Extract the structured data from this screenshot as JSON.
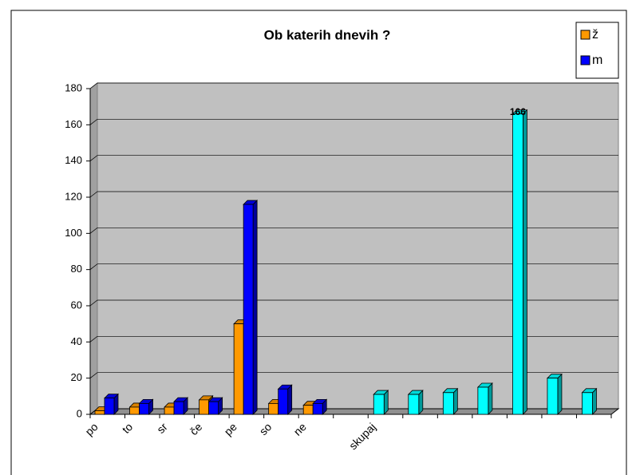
{
  "chart_data": {
    "type": "bar3d",
    "title": "Ob katerih dnevih ?",
    "categories": [
      "po",
      "to",
      "sr",
      "če",
      "pe",
      "so",
      "ne",
      null,
      "skupaj",
      null,
      null,
      null,
      null,
      null,
      null
    ],
    "series": [
      {
        "name": "ž",
        "color": "#ff9900",
        "values": [
          2,
          4,
          4,
          8,
          50,
          6,
          5,
          null,
          null,
          null,
          null,
          null,
          null,
          null,
          null
        ]
      },
      {
        "name": "m",
        "color": "#0000ff",
        "values": [
          9,
          6,
          7,
          7,
          116,
          14,
          6,
          null,
          null,
          null,
          null,
          null,
          null,
          null,
          null
        ]
      },
      {
        "color": "#00ffff",
        "values": [
          null,
          null,
          null,
          null,
          null,
          null,
          null,
          null,
          11,
          11,
          12,
          15,
          166,
          20,
          12
        ]
      }
    ],
    "ylim": [
      0,
      180
    ],
    "yticks": [
      0,
      20,
      40,
      60,
      80,
      100,
      120,
      140,
      160,
      180
    ],
    "grid": true,
    "legend": "top-right"
  }
}
